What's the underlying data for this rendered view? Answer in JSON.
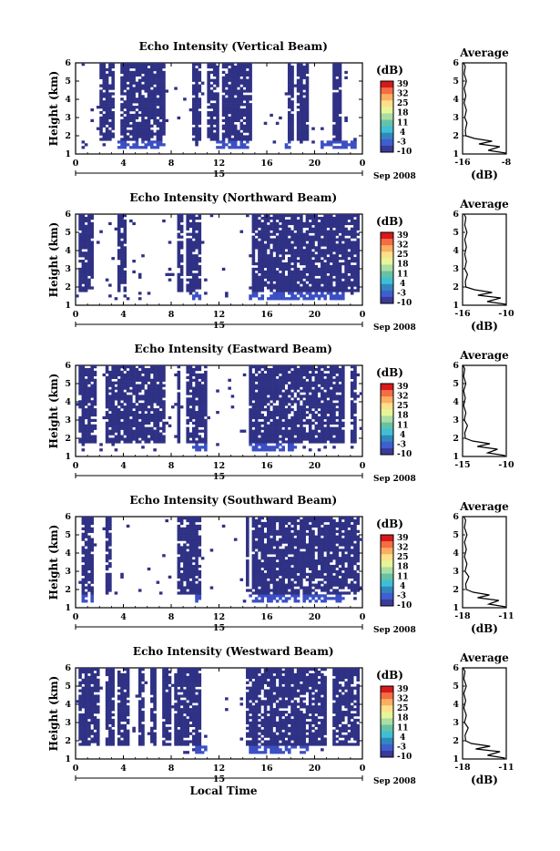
{
  "figure": {
    "date_label": "Sep 2008",
    "xaxis_label": "Local Time",
    "colorbar_unit": "(dB)",
    "colorbar_ticks": [
      "39",
      "32",
      "25",
      "18",
      "11",
      "4",
      "-3",
      "-10"
    ],
    "colorbar_colors": [
      "#d7191c",
      "#f46d43",
      "#fdae61",
      "#fee08b",
      "#e6f598",
      "#abdda4",
      "#66c2a5",
      "#3fbfd6",
      "#3288bd",
      "#3f5fd0",
      "#3a3a9a"
    ],
    "main_color": "#2f3185",
    "edge_color": "#3b4fc4"
  },
  "chart_data": [
    {
      "type": "heatmap",
      "title": "Echo Intensity (Vertical Beam)",
      "ylabel": "Height (km)",
      "xlabel": "",
      "x_ticks": [
        "0",
        "4",
        "8",
        "12",
        "16",
        "20",
        "0"
      ],
      "x_day_label": "15",
      "y_ticks": [
        "1",
        "2",
        "3",
        "4",
        "5",
        "6"
      ],
      "xlim": [
        0,
        24
      ],
      "ylim": [
        1,
        6
      ],
      "value_unit": "dB",
      "color_range": [
        -10,
        39
      ],
      "echo_periods_hours": [
        [
          2,
          3.2
        ],
        [
          3.8,
          7.6
        ],
        [
          9.7,
          10.6
        ],
        [
          11.0,
          12.0
        ],
        [
          12.3,
          14.8
        ],
        [
          17.8,
          18.3
        ],
        [
          18.5,
          19.6
        ],
        [
          21.5,
          22.3
        ]
      ],
      "surface_band_periods_hours": [
        [
          3.5,
          7.5
        ],
        [
          11.7,
          14.5
        ],
        [
          17.5,
          18
        ],
        [
          20.5,
          23.5
        ]
      ],
      "average_profile": {
        "title": "Average",
        "xlabel": "(dB)",
        "x_ticks": [
          "-16",
          "-8"
        ],
        "xlim": [
          -16,
          -8
        ],
        "heights_km": [
          1.05,
          1.2,
          1.4,
          1.55,
          1.7,
          1.85,
          2.0,
          2.3,
          2.7,
          3.0,
          3.4,
          3.8,
          4.2,
          4.6,
          5.0,
          5.4,
          5.8,
          6.0
        ],
        "values_db": [
          -8.1,
          -11.3,
          -9.2,
          -13.0,
          -10.6,
          -13.8,
          -15.4,
          -15.5,
          -15.2,
          -15.6,
          -15.3,
          -15.7,
          -15.4,
          -15.7,
          -15.3,
          -15.7,
          -15.5,
          -15.8
        ]
      }
    },
    {
      "type": "heatmap",
      "title": "Echo Intensity (Northward Beam)",
      "ylabel": "Height (km)",
      "xlabel": "",
      "x_ticks": [
        "0",
        "4",
        "8",
        "12",
        "16",
        "20",
        "0"
      ],
      "x_day_label": "15",
      "y_ticks": [
        "1",
        "2",
        "3",
        "4",
        "5",
        "6"
      ],
      "xlim": [
        0,
        24
      ],
      "ylim": [
        1,
        6
      ],
      "value_unit": "dB",
      "color_range": [
        -10,
        39
      ],
      "echo_periods_hours": [
        [
          0.2,
          1.5
        ],
        [
          3.6,
          4.2
        ],
        [
          8.5,
          8.9
        ],
        [
          9.3,
          10.6
        ],
        [
          14.7,
          23.7
        ]
      ],
      "surface_band_periods_hours": [
        [
          9.8,
          10.6
        ],
        [
          14.5,
          22.5
        ]
      ],
      "average_profile": {
        "title": "Average",
        "xlabel": "(dB)",
        "x_ticks": [
          "-16",
          "-10"
        ],
        "xlim": [
          -16,
          -8
        ],
        "heights_km": [
          1.05,
          1.2,
          1.4,
          1.55,
          1.7,
          1.85,
          2.0,
          2.3,
          2.7,
          3.0,
          3.4,
          3.8,
          4.2,
          4.6,
          5.0,
          5.4,
          5.8,
          6.0
        ],
        "values_db": [
          -8.0,
          -11.5,
          -9.0,
          -13.2,
          -10.6,
          -13.8,
          -15.4,
          -15.5,
          -15.1,
          -15.6,
          -15.3,
          -15.6,
          -15.3,
          -15.6,
          -15.2,
          -15.6,
          -15.4,
          -15.7
        ]
      }
    },
    {
      "type": "heatmap",
      "title": "Echo Intensity (Eastward Beam)",
      "ylabel": "Height (km)",
      "xlabel": "",
      "x_ticks": [
        "0",
        "4",
        "8",
        "12",
        "16",
        "20",
        "0"
      ],
      "x_day_label": "15",
      "y_ticks": [
        "1",
        "2",
        "3",
        "4",
        "5",
        "6"
      ],
      "xlim": [
        0,
        24
      ],
      "ylim": [
        1,
        6
      ],
      "value_unit": "dB",
      "color_range": [
        -10,
        39
      ],
      "echo_periods_hours": [
        [
          0.3,
          1.7
        ],
        [
          2.5,
          3.2
        ],
        [
          3.3,
          7.5
        ],
        [
          8.4,
          8.8
        ],
        [
          9.2,
          11.0
        ],
        [
          14.6,
          22.5
        ],
        [
          22.9,
          23.6
        ]
      ],
      "surface_band_periods_hours": [
        [
          9.8,
          11.0
        ],
        [
          14.5,
          18.5
        ]
      ],
      "average_profile": {
        "title": "Average",
        "xlabel": "",
        "x_ticks": [
          "-15",
          "-10"
        ],
        "xlim": [
          -18,
          -10
        ],
        "heights_km": [
          1.05,
          1.2,
          1.4,
          1.55,
          1.7,
          1.85,
          2.0,
          2.3,
          2.7,
          3.0,
          3.4,
          3.8,
          4.2,
          4.6,
          5.0,
          5.4,
          5.8,
          6.0
        ],
        "values_db": [
          -10.2,
          -13.4,
          -11.6,
          -15.3,
          -13.0,
          -16.2,
          -17.5,
          -17.6,
          -17.1,
          -17.7,
          -17.4,
          -17.8,
          -17.5,
          -17.8,
          -17.4,
          -17.8,
          -17.6,
          -17.9
        ]
      }
    },
    {
      "type": "heatmap",
      "title": "Echo Intensity (Southward Beam)",
      "ylabel": "Height (km)",
      "xlabel": "",
      "x_ticks": [
        "0",
        "4",
        "8",
        "12",
        "16",
        "20",
        "0"
      ],
      "x_day_label": "15",
      "y_ticks": [
        "1",
        "2",
        "3",
        "4",
        "5",
        "6"
      ],
      "xlim": [
        0,
        24
      ],
      "ylim": [
        1,
        6
      ],
      "value_unit": "dB",
      "color_range": [
        -10,
        39
      ],
      "echo_periods_hours": [
        [
          0.6,
          1.6
        ],
        [
          2.4,
          3.0
        ],
        [
          8.5,
          10.6
        ],
        [
          14.2,
          14.6
        ],
        [
          14.7,
          23.7
        ]
      ],
      "surface_band_periods_hours": [
        [
          0.4,
          1.5
        ],
        [
          10.0,
          10.6
        ],
        [
          14.5,
          22.5
        ]
      ],
      "average_profile": {
        "title": "Average",
        "xlabel": "(dB)",
        "x_ticks": [
          "-18",
          "-11"
        ],
        "xlim": [
          -18,
          -11
        ],
        "heights_km": [
          1.05,
          1.2,
          1.4,
          1.55,
          1.7,
          1.85,
          2.0,
          2.3,
          2.7,
          3.0,
          3.4,
          3.8,
          4.2,
          4.6,
          5.0,
          5.4,
          5.8,
          6.0
        ],
        "values_db": [
          -11.1,
          -13.8,
          -12.2,
          -15.6,
          -13.7,
          -16.3,
          -17.4,
          -17.5,
          -17.0,
          -17.6,
          -17.3,
          -17.7,
          -17.4,
          -17.7,
          -17.3,
          -17.7,
          -17.5,
          -17.8
        ]
      }
    },
    {
      "type": "heatmap",
      "title": "Echo Intensity (Westward Beam)",
      "ylabel": "Height (km)",
      "xlabel": "Local Time",
      "x_ticks": [
        "0",
        "4",
        "8",
        "12",
        "16",
        "20",
        "0"
      ],
      "x_day_label": "15",
      "y_ticks": [
        "1",
        "2",
        "3",
        "4",
        "5",
        "6"
      ],
      "xlim": [
        0,
        24
      ],
      "ylim": [
        1,
        6
      ],
      "value_unit": "dB",
      "color_range": [
        -10,
        39
      ],
      "echo_periods_hours": [
        [
          0.2,
          1.9
        ],
        [
          2.6,
          3.3
        ],
        [
          3.6,
          4.4
        ],
        [
          5.2,
          5.8
        ],
        [
          6.2,
          6.8
        ],
        [
          7.2,
          7.9
        ],
        [
          8.3,
          10.6
        ],
        [
          14.2,
          21.0
        ],
        [
          21.5,
          23.7
        ]
      ],
      "surface_band_periods_hours": [
        [
          10.0,
          11.0
        ],
        [
          14.5,
          19.5
        ]
      ],
      "average_profile": {
        "title": "Average",
        "xlabel": "(dB)",
        "x_ticks": [
          "-18",
          "-11"
        ],
        "xlim": [
          -18,
          -11
        ],
        "heights_km": [
          1.05,
          1.2,
          1.4,
          1.55,
          1.7,
          1.85,
          2.0,
          2.3,
          2.7,
          3.0,
          3.4,
          3.8,
          4.2,
          4.6,
          5.0,
          5.4,
          5.8,
          6.0
        ],
        "values_db": [
          -11.2,
          -14.0,
          -12.0,
          -15.9,
          -13.6,
          -16.6,
          -17.5,
          -17.6,
          -17.1,
          -17.7,
          -17.4,
          -17.8,
          -17.5,
          -17.8,
          -17.4,
          -17.8,
          -17.6,
          -17.9
        ]
      }
    }
  ]
}
